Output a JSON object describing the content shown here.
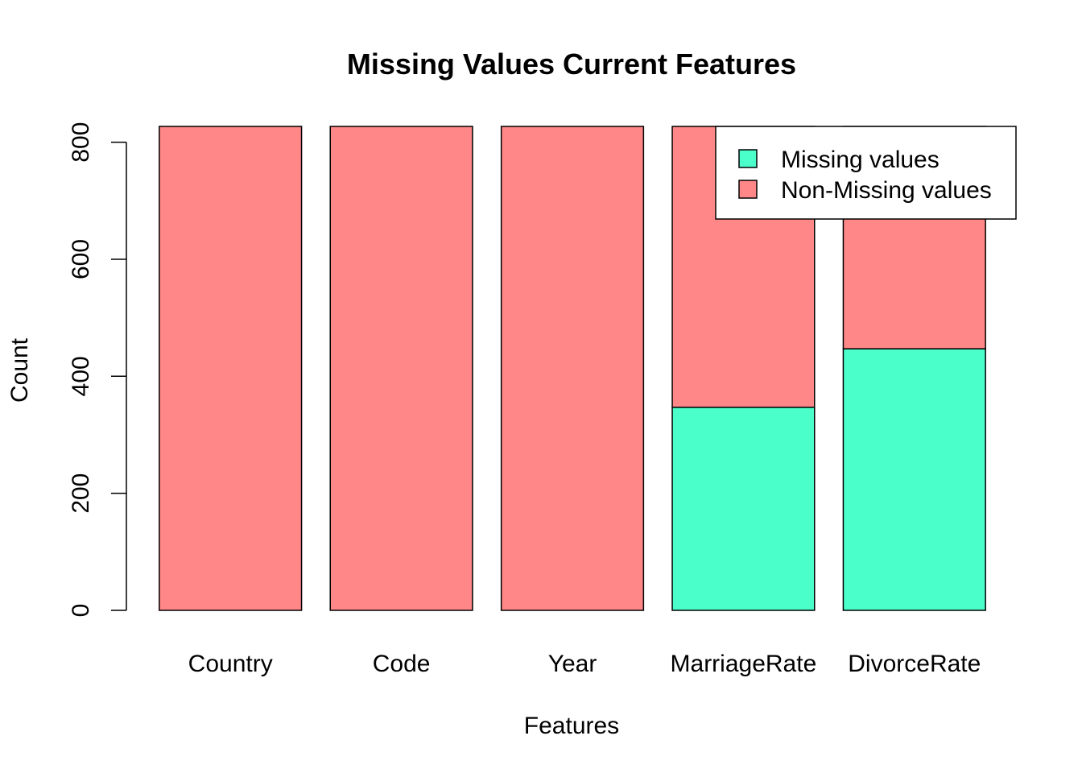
{
  "chart_data": {
    "type": "bar",
    "stacked": true,
    "title": "Missing Values Current Features",
    "xlabel": "Features",
    "ylabel": "Count",
    "categories": [
      "Country",
      "Code",
      "Year",
      "MarriageRate",
      "DivorceRate"
    ],
    "series": [
      {
        "name": "Missing values",
        "color": "#4BFFCB",
        "values": [
          0,
          0,
          0,
          347,
          447
        ]
      },
      {
        "name": "Non-Missing values",
        "color": "#FF8787",
        "values": [
          827,
          827,
          827,
          480,
          380
        ]
      }
    ],
    "ylim": [
      0,
      827
    ],
    "yticks": [
      0,
      200,
      400,
      600,
      800
    ],
    "grid": false,
    "legend_position": "top-right"
  }
}
